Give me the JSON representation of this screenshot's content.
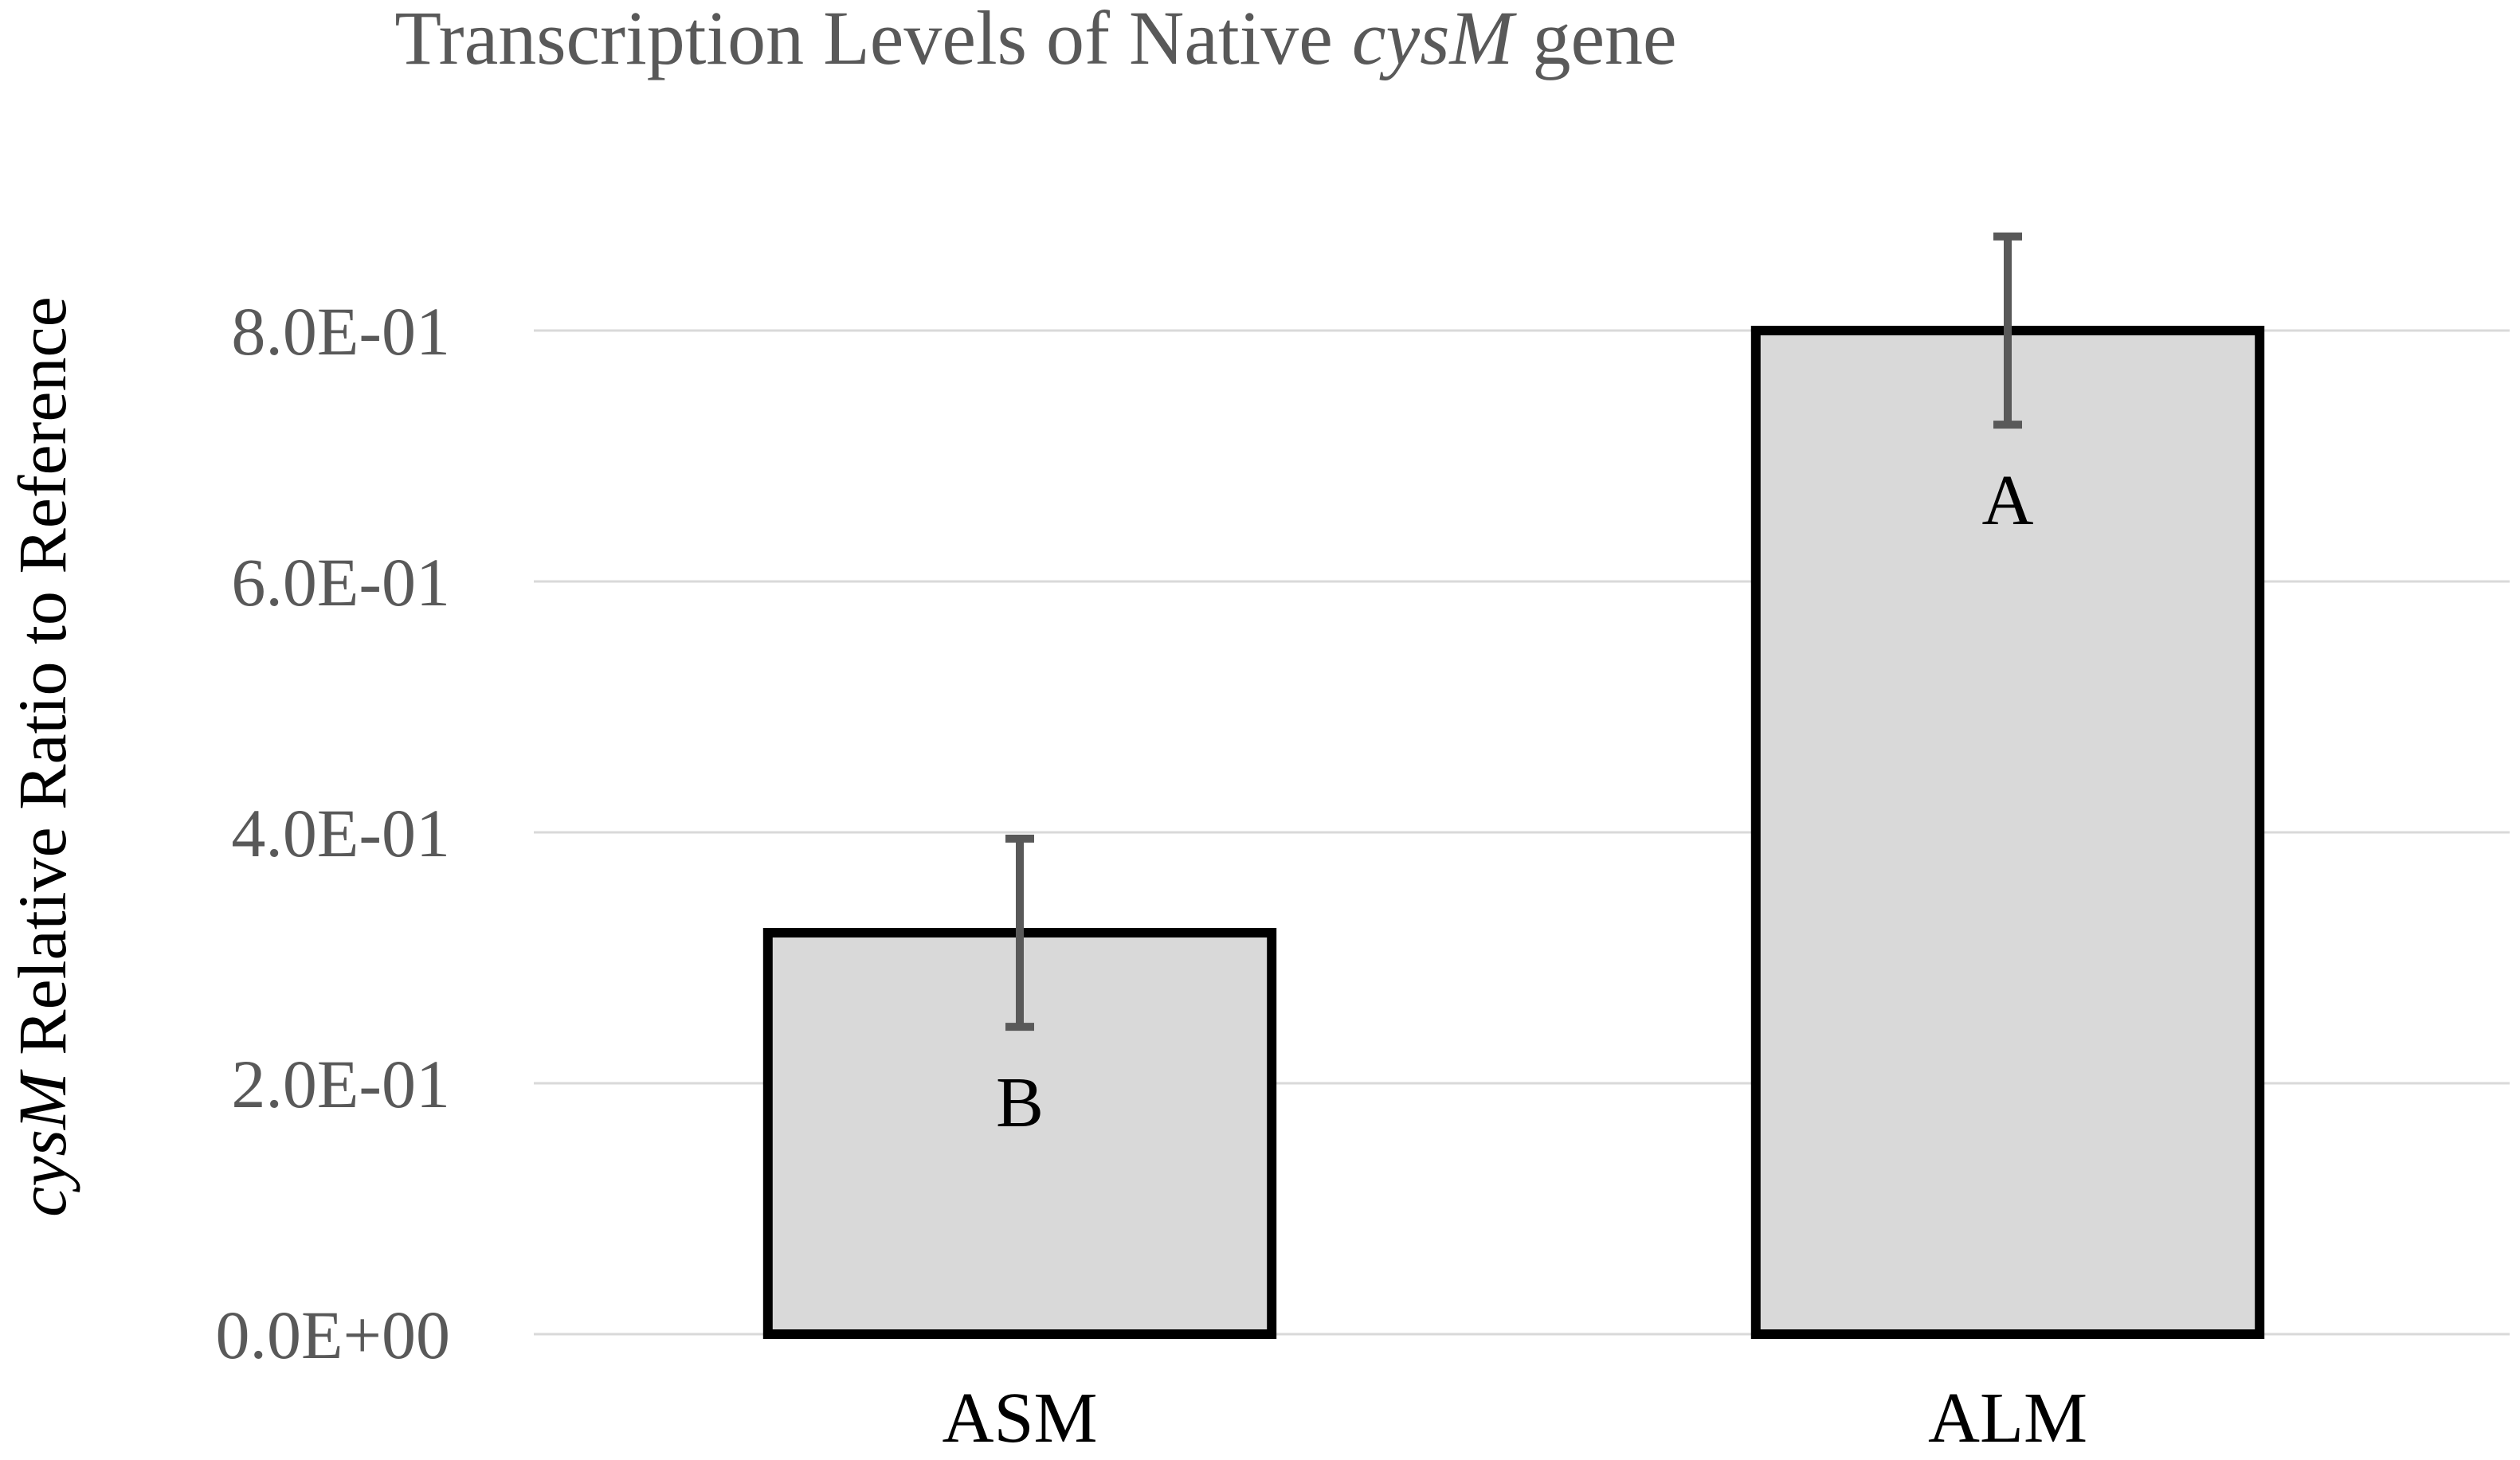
{
  "chart_data": {
    "type": "bar",
    "title": {
      "prefix": "Transcription  Levels of Native ",
      "italic": "cysM",
      "suffix": " gene"
    },
    "ylabel": {
      "italic": "cysM",
      "rest": " Relative  Ratio to Reference"
    },
    "xlabel": "",
    "categories": [
      "ASM",
      "ALM"
    ],
    "values": [
      0.32,
      0.8
    ],
    "error": [
      0.075,
      0.075
    ],
    "significance_labels": [
      "B",
      "A"
    ],
    "ylim": [
      0,
      0.9
    ],
    "yticks": [
      0,
      0.2,
      0.4,
      0.6,
      0.8
    ],
    "ytick_labels": [
      "0.0E+00",
      "2.0E-01",
      "4.0E-01",
      "6.0E-01",
      "8.0E-01"
    ],
    "grid": true,
    "colors": {
      "bar_fill": "#d9d9d9",
      "bar_edge": "#000000",
      "error_bar": "#595959",
      "grid": "#d9d9d9",
      "text": "#595959"
    }
  }
}
